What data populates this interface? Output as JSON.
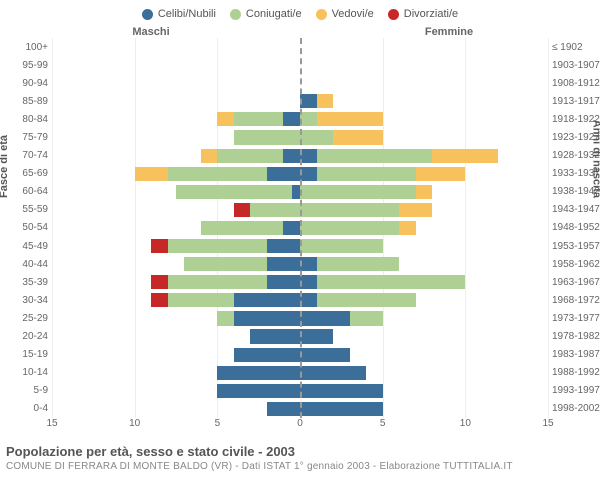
{
  "legend": [
    {
      "key": "celibi",
      "label": "Celibi/Nubili",
      "color": "#3b6e99"
    },
    {
      "key": "coniugati",
      "label": "Coniugati/e",
      "color": "#aed095"
    },
    {
      "key": "vedovi",
      "label": "Vedovi/e",
      "color": "#f7c15e"
    },
    {
      "key": "divorziati",
      "label": "Divorziati/e",
      "color": "#c62828"
    }
  ],
  "headers": {
    "left": "Maschi",
    "right": "Femmine"
  },
  "axis_titles": {
    "left": "Fasce di età",
    "right": "Anni di nascita"
  },
  "title": "Popolazione per età, sesso e stato civile - 2003",
  "subtitle": "COMUNE DI FERRARA DI MONTE BALDO (VR) - Dati ISTAT 1° gennaio 2003 - Elaborazione TUTTITALIA.IT",
  "xmax": 15,
  "xticks": [
    0,
    5,
    10,
    15
  ],
  "colors": {
    "celibi": "#3b6e99",
    "coniugati": "#aed095",
    "vedovi": "#f7c15e",
    "divorziati": "#c62828",
    "grid": "#eeeeee",
    "midline": "#999999",
    "text": "#666666",
    "background": "#ffffff"
  },
  "rows": [
    {
      "age": "100+",
      "birth": "≤ 1902",
      "m": {
        "c": 0,
        "co": 0,
        "v": 0,
        "d": 0
      },
      "f": {
        "c": 0,
        "co": 0,
        "v": 0,
        "d": 0
      }
    },
    {
      "age": "95-99",
      "birth": "1903-1907",
      "m": {
        "c": 0,
        "co": 0,
        "v": 0,
        "d": 0
      },
      "f": {
        "c": 0,
        "co": 0,
        "v": 0,
        "d": 0
      }
    },
    {
      "age": "90-94",
      "birth": "1908-1912",
      "m": {
        "c": 0,
        "co": 0,
        "v": 0,
        "d": 0
      },
      "f": {
        "c": 0,
        "co": 0,
        "v": 0,
        "d": 0
      }
    },
    {
      "age": "85-89",
      "birth": "1913-1917",
      "m": {
        "c": 0,
        "co": 0,
        "v": 0,
        "d": 0
      },
      "f": {
        "c": 1,
        "co": 0,
        "v": 1,
        "d": 0
      }
    },
    {
      "age": "80-84",
      "birth": "1918-1922",
      "m": {
        "c": 1,
        "co": 3,
        "v": 1,
        "d": 0
      },
      "f": {
        "c": 0,
        "co": 1,
        "v": 4,
        "d": 0
      }
    },
    {
      "age": "75-79",
      "birth": "1923-1927",
      "m": {
        "c": 0,
        "co": 4,
        "v": 0,
        "d": 0
      },
      "f": {
        "c": 0,
        "co": 2,
        "v": 3,
        "d": 0
      }
    },
    {
      "age": "70-74",
      "birth": "1928-1932",
      "m": {
        "c": 1,
        "co": 4,
        "v": 1,
        "d": 0
      },
      "f": {
        "c": 1,
        "co": 7,
        "v": 4,
        "d": 0
      }
    },
    {
      "age": "65-69",
      "birth": "1933-1937",
      "m": {
        "c": 2,
        "co": 6,
        "v": 2,
        "d": 0
      },
      "f": {
        "c": 1,
        "co": 6,
        "v": 3,
        "d": 0
      }
    },
    {
      "age": "60-64",
      "birth": "1938-1942",
      "m": {
        "c": 0.5,
        "co": 7,
        "v": 0,
        "d": 0
      },
      "f": {
        "c": 0,
        "co": 7,
        "v": 1,
        "d": 0
      }
    },
    {
      "age": "55-59",
      "birth": "1943-1947",
      "m": {
        "c": 0,
        "co": 3,
        "v": 0,
        "d": 1
      },
      "f": {
        "c": 0,
        "co": 6,
        "v": 2,
        "d": 0
      }
    },
    {
      "age": "50-54",
      "birth": "1948-1952",
      "m": {
        "c": 1,
        "co": 5,
        "v": 0,
        "d": 0
      },
      "f": {
        "c": 0,
        "co": 6,
        "v": 1,
        "d": 0
      }
    },
    {
      "age": "45-49",
      "birth": "1953-1957",
      "m": {
        "c": 2,
        "co": 6,
        "v": 0,
        "d": 1
      },
      "f": {
        "c": 0,
        "co": 5,
        "v": 0,
        "d": 0
      }
    },
    {
      "age": "40-44",
      "birth": "1958-1962",
      "m": {
        "c": 2,
        "co": 5,
        "v": 0,
        "d": 0
      },
      "f": {
        "c": 1,
        "co": 5,
        "v": 0,
        "d": 0
      }
    },
    {
      "age": "35-39",
      "birth": "1963-1967",
      "m": {
        "c": 2,
        "co": 6,
        "v": 0,
        "d": 1
      },
      "f": {
        "c": 1,
        "co": 9,
        "v": 0,
        "d": 0
      }
    },
    {
      "age": "30-34",
      "birth": "1968-1972",
      "m": {
        "c": 4,
        "co": 4,
        "v": 0,
        "d": 1
      },
      "f": {
        "c": 1,
        "co": 6,
        "v": 0,
        "d": 0
      }
    },
    {
      "age": "25-29",
      "birth": "1973-1977",
      "m": {
        "c": 4,
        "co": 1,
        "v": 0,
        "d": 0
      },
      "f": {
        "c": 3,
        "co": 2,
        "v": 0,
        "d": 0
      }
    },
    {
      "age": "20-24",
      "birth": "1978-1982",
      "m": {
        "c": 3,
        "co": 0,
        "v": 0,
        "d": 0
      },
      "f": {
        "c": 2,
        "co": 0,
        "v": 0,
        "d": 0
      }
    },
    {
      "age": "15-19",
      "birth": "1983-1987",
      "m": {
        "c": 4,
        "co": 0,
        "v": 0,
        "d": 0
      },
      "f": {
        "c": 3,
        "co": 0,
        "v": 0,
        "d": 0
      }
    },
    {
      "age": "10-14",
      "birth": "1988-1992",
      "m": {
        "c": 5,
        "co": 0,
        "v": 0,
        "d": 0
      },
      "f": {
        "c": 4,
        "co": 0,
        "v": 0,
        "d": 0
      }
    },
    {
      "age": "5-9",
      "birth": "1993-1997",
      "m": {
        "c": 5,
        "co": 0,
        "v": 0,
        "d": 0
      },
      "f": {
        "c": 5,
        "co": 0,
        "v": 0,
        "d": 0
      }
    },
    {
      "age": "0-4",
      "birth": "1998-2002",
      "m": {
        "c": 2,
        "co": 0,
        "v": 0,
        "d": 0
      },
      "f": {
        "c": 5,
        "co": 0,
        "v": 0,
        "d": 0
      }
    }
  ]
}
